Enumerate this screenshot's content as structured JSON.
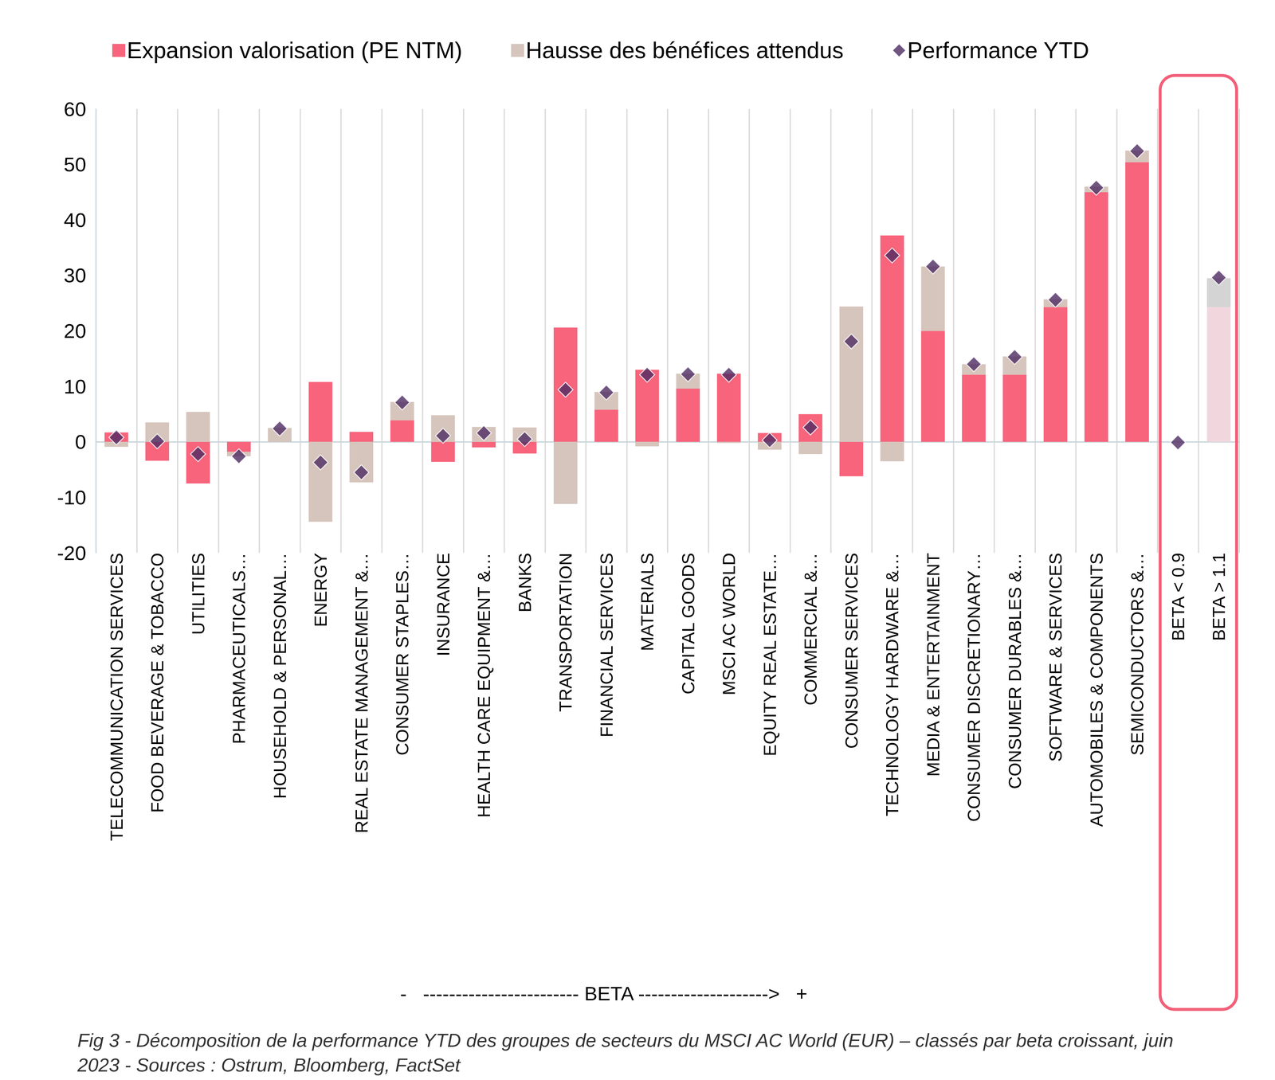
{
  "chart_data": {
    "type": "bar",
    "stacked": true,
    "grid": false,
    "legend": "top",
    "categories": [
      "TELECOMMUNICATION SERVICES",
      "FOOD BEVERAGE & TOBACCO",
      "UTILITIES",
      "PHARMACEUTICALS…",
      "HOUSEHOLD & PERSONAL…",
      "ENERGY",
      "REAL ESTATE MANAGEMENT &…",
      "CONSUMER STAPLES…",
      "INSURANCE",
      "HEALTH CARE EQUIPMENT &…",
      "BANKS",
      "TRANSPORTATION",
      "FINANCIAL SERVICES",
      "MATERIALS",
      "CAPITAL GOODS",
      "MSCI AC WORLD",
      "EQUITY REAL ESTATE…",
      "COMMERCIAL &…",
      "CONSUMER SERVICES",
      "TECHNOLOGY HARDWARE &…",
      "MEDIA & ENTERTAINMENT",
      "CONSUMER DISCRETIONARY…",
      "CONSUMER DURABLES &…",
      "SOFTWARE & SERVICES",
      "AUTOMOBILES & COMPONENTS",
      "SEMICONDUCTORS &…",
      "BETA < 0.9",
      "BETA > 1.1"
    ],
    "series": [
      {
        "name": "Expansion valorisation (PE NTM)",
        "type": "bar",
        "color": "#f7647c",
        "colors": [
          "#f7647c",
          "#f7647c",
          "#f7647c",
          "#f7647c",
          "#f7647c",
          "#f7647c",
          "#f7647c",
          "#f7647c",
          "#f7647c",
          "#f7647c",
          "#f7647c",
          "#f7647c",
          "#f7647c",
          "#f7647c",
          "#f7647c",
          "#f7647c",
          "#f7647c",
          "#f7647c",
          "#f7647c",
          "#f7647c",
          "#f7647c",
          "#f7647c",
          "#f7647c",
          "#f7647c",
          "#f7647c",
          "#f7647c",
          "#f7647c",
          "#f2d6de"
        ],
        "values": [
          1.7,
          -3.4,
          -7.5,
          -1.8,
          0,
          10.8,
          1.8,
          3.9,
          -3.6,
          -1.0,
          -2.1,
          20.6,
          5.8,
          13.0,
          9.6,
          12.3,
          1.6,
          5.0,
          -6.2,
          37.2,
          20.0,
          12.1,
          12.1,
          24.3,
          45.0,
          50.4,
          0,
          24.3
        ]
      },
      {
        "name": "Hausse des bénéfices attendus",
        "type": "bar",
        "color": "#d6c5bc",
        "colors": [
          "#d6c5bc",
          "#d6c5bc",
          "#d6c5bc",
          "#d6c5bc",
          "#d6c5bc",
          "#d6c5bc",
          "#d6c5bc",
          "#d6c5bc",
          "#d6c5bc",
          "#d6c5bc",
          "#d6c5bc",
          "#d6c5bc",
          "#d6c5bc",
          "#d6c5bc",
          "#d6c5bc",
          "#d6c5bc",
          "#d6c5bc",
          "#d6c5bc",
          "#d6c5bc",
          "#d6c5bc",
          "#d6c5bc",
          "#d6c5bc",
          "#d6c5bc",
          "#d6c5bc",
          "#d6c5bc",
          "#d6c5bc",
          "#d6c5bc",
          "#d4d4d4"
        ],
        "values": [
          -0.9,
          3.5,
          5.4,
          -0.8,
          2.5,
          -14.4,
          -7.3,
          3.3,
          4.8,
          2.7,
          2.6,
          -11.2,
          3.2,
          -0.8,
          2.7,
          -0.2,
          -1.4,
          -2.2,
          24.4,
          -3.5,
          11.6,
          1.9,
          3.3,
          1.4,
          1.0,
          2.1,
          0,
          5.2
        ]
      },
      {
        "name": "Performance YTD",
        "type": "scatter",
        "marker": "diamond",
        "color": "#4e2a62",
        "values": [
          0.8,
          0.1,
          -2.2,
          -2.6,
          2.4,
          -3.7,
          -5.5,
          7.1,
          1.1,
          1.6,
          0.5,
          9.4,
          8.9,
          12.1,
          12.2,
          12.1,
          0.3,
          2.6,
          18.1,
          33.6,
          31.6,
          14.0,
          15.3,
          25.6,
          45.8,
          52.4,
          -0.1,
          29.6
        ]
      }
    ],
    "ylim": [
      -20,
      60
    ],
    "yticks": [
      -20,
      -10,
      0,
      10,
      20,
      30,
      40,
      50,
      60
    ],
    "annotations": [
      "-   ------------------------ BETA -------------------->   +"
    ],
    "caption": "Fig 3 - Décomposition de la performance YTD des groupes de secteurs du MSCI AC World (EUR) – classés par beta croissant, juin 2023 - Sources : Ostrum, Bloomberg, FactSet"
  }
}
